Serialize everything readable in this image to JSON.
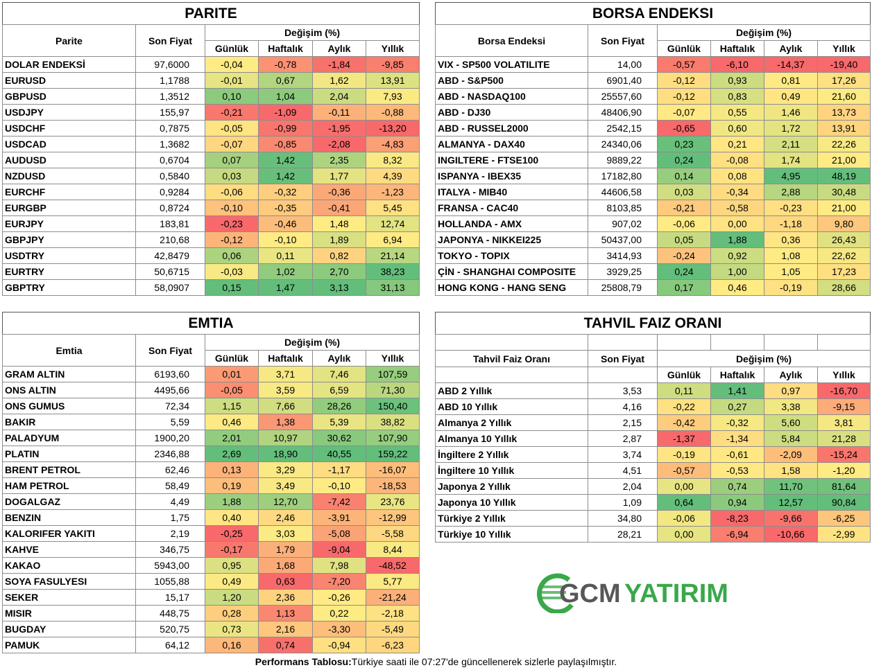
{
  "parite": {
    "title": "PARITE",
    "headers": {
      "name": "Parite",
      "price": "Son Fiyat",
      "change": "Değişim (%)",
      "periods": [
        "Günlük",
        "Haftalık",
        "Aylık",
        "Yıllık"
      ]
    },
    "rows": [
      [
        "DOLAR ENDEKSİ",
        "97,6000",
        "-0,04",
        "-0,78",
        "-1,84",
        "-9,85"
      ],
      [
        "EURUSD",
        "1,1788",
        "-0,01",
        "0,67",
        "1,62",
        "13,91"
      ],
      [
        "GBPUSD",
        "1,3512",
        "0,10",
        "1,04",
        "2,04",
        "7,93"
      ],
      [
        "USDJPY",
        "155,97",
        "-0,21",
        "-1,09",
        "-0,11",
        "-0,88"
      ],
      [
        "USDCHF",
        "0,7875",
        "-0,05",
        "-0,99",
        "-1,95",
        "-13,20"
      ],
      [
        "USDCAD",
        "1,3682",
        "-0,07",
        "-0,85",
        "-2,08",
        "-4,83"
      ],
      [
        "AUDUSD",
        "0,6704",
        "0,07",
        "1,42",
        "2,35",
        "8,32"
      ],
      [
        "NZDUSD",
        "0,5840",
        "0,03",
        "1,42",
        "1,77",
        "4,39"
      ],
      [
        "EURCHF",
        "0,9284",
        "-0,06",
        "-0,32",
        "-0,36",
        "-1,23"
      ],
      [
        "EURGBP",
        "0,8724",
        "-0,10",
        "-0,35",
        "-0,41",
        "5,45"
      ],
      [
        "EURJPY",
        "183,81",
        "-0,23",
        "-0,46",
        "1,48",
        "12,74"
      ],
      [
        "GBPJPY",
        "210,68",
        "-0,12",
        "-0,10",
        "1,89",
        "6,94"
      ],
      [
        "USDTRY",
        "42,8479",
        "0,06",
        "0,11",
        "0,82",
        "21,14"
      ],
      [
        "EURTRY",
        "50,6715",
        "-0,03",
        "1,02",
        "2,70",
        "38,23"
      ],
      [
        "GBPTRY",
        "58,0907",
        "0,15",
        "1,47",
        "3,13",
        "31,13"
      ]
    ]
  },
  "borsa": {
    "title": "BORSA ENDEKSI",
    "headers": {
      "name": "Borsa Endeksi",
      "price": "Son Fiyat",
      "change": "Değişim (%)",
      "periods": [
        "Günlük",
        "Haftalık",
        "Aylık",
        "Yıllık"
      ]
    },
    "rows": [
      [
        "VIX  - SP500 VOLATILITE",
        "14,00",
        "-0,57",
        "-6,10",
        "-14,37",
        "-19,40"
      ],
      [
        "ABD - S&P500",
        "6901,40",
        "-0,12",
        "0,93",
        "0,81",
        "17,26"
      ],
      [
        "ABD - NASDAQ100",
        "25557,60",
        "-0,12",
        "0,83",
        "0,49",
        "21,60"
      ],
      [
        "ABD - DJ30",
        "48406,90",
        "-0,07",
        "0,55",
        "1,46",
        "13,73"
      ],
      [
        "ABD - RUSSEL2000",
        "2542,15",
        "-0,65",
        "0,60",
        "1,72",
        "13,91"
      ],
      [
        "ALMANYA - DAX40",
        "24340,06",
        "0,23",
        "0,21",
        "2,11",
        "22,26"
      ],
      [
        "INGILTERE - FTSE100",
        "9889,22",
        "0,24",
        "-0,08",
        "1,74",
        "21,00"
      ],
      [
        "ISPANYA - IBEX35",
        "17182,80",
        "0,14",
        "0,08",
        "4,95",
        "48,19"
      ],
      [
        "ITALYA - MIB40",
        "44606,58",
        "0,03",
        "-0,34",
        "2,88",
        "30,48"
      ],
      [
        "FRANSA - CAC40",
        "8103,85",
        "-0,21",
        "-0,58",
        "-0,23",
        "21,00"
      ],
      [
        "HOLLANDA - AMX",
        "907,02",
        "-0,06",
        "0,00",
        "-1,18",
        "9,80"
      ],
      [
        "JAPONYA - NIKKEI225",
        "50437,00",
        "0,05",
        "1,88",
        "0,36",
        "26,43"
      ],
      [
        "TOKYO - TOPIX",
        "3414,93",
        "-0,24",
        "0,92",
        "1,08",
        "22,62"
      ],
      [
        "ÇİN - SHANGHAI COMPOSITE",
        "3929,25",
        "0,24",
        "1,00",
        "1,05",
        "17,23"
      ],
      [
        "HONG KONG - HANG SENG",
        "25808,79",
        "0,17",
        "0,46",
        "-0,19",
        "28,66"
      ]
    ]
  },
  "emtia": {
    "title": "EMTIA",
    "headers": {
      "name": "Emtia",
      "price": "Son Fiyat",
      "change": "Değişim (%)",
      "periods": [
        "Günlük",
        "Haftalık",
        "Aylık",
        "Yıllık"
      ]
    },
    "rows": [
      [
        "GRAM ALTIN",
        "6193,60",
        "0,01",
        "3,71",
        "7,46",
        "107,59"
      ],
      [
        "ONS ALTIN",
        "4495,66",
        "-0,05",
        "3,59",
        "6,59",
        "71,30"
      ],
      [
        "ONS GUMUS",
        "72,34",
        "1,15",
        "7,66",
        "28,26",
        "150,40"
      ],
      [
        "BAKIR",
        "5,59",
        "0,46",
        "1,38",
        "5,39",
        "38,82"
      ],
      [
        "PALADYUM",
        "1900,20",
        "2,01",
        "10,97",
        "30,62",
        "107,90"
      ],
      [
        "PLATIN",
        "2346,88",
        "2,69",
        "18,90",
        "40,55",
        "159,22"
      ],
      [
        "BRENT PETROL",
        "62,46",
        "0,13",
        "3,29",
        "-1,17",
        "-16,07"
      ],
      [
        "HAM PETROL",
        "58,49",
        "0,19",
        "3,49",
        "-0,10",
        "-18,53"
      ],
      [
        "DOGALGAZ",
        "4,49",
        "1,88",
        "12,70",
        "-7,42",
        "23,76"
      ],
      [
        "BENZIN",
        "1,75",
        "0,40",
        "2,46",
        "-3,91",
        "-12,99"
      ],
      [
        "KALORIFER YAKITI",
        "2,19",
        "-0,25",
        "3,03",
        "-5,08",
        "-5,58"
      ],
      [
        "KAHVE",
        "346,75",
        "-0,17",
        "1,79",
        "-9,04",
        "8,44"
      ],
      [
        "KAKAO",
        "5943,00",
        "0,95",
        "1,68",
        "7,98",
        "-48,52"
      ],
      [
        "SOYA FASULYESI",
        "1055,88",
        "0,49",
        "0,63",
        "-7,20",
        "5,77"
      ],
      [
        "SEKER",
        "15,17",
        "1,20",
        "2,36",
        "-0,26",
        "-21,24"
      ],
      [
        "MISIR",
        "448,75",
        "0,28",
        "1,13",
        "0,22",
        "-2,18"
      ],
      [
        "BUGDAY",
        "520,75",
        "0,73",
        "2,16",
        "-3,30",
        "-5,49"
      ],
      [
        "PAMUK",
        "64,12",
        "0,16",
        "0,74",
        "-0,94",
        "-6,23"
      ]
    ]
  },
  "tahvil": {
    "title": "TAHVIL FAIZ ORANI",
    "headers": {
      "name": "Tahvil Faiz Oranı",
      "price": "Son Fiyat",
      "change": "Değişim (%)",
      "periods": [
        "Günlük",
        "Haftalık",
        "Aylık",
        "Yıllık"
      ]
    },
    "rows": [
      [
        "ABD 2 Yıllık",
        "3,53",
        "0,11",
        "1,41",
        "0,97",
        "-16,70"
      ],
      [
        "ABD 10 Yıllık",
        "4,16",
        "-0,22",
        "0,27",
        "3,38",
        "-9,15"
      ],
      [
        "Almanya 2 Yıllık",
        "2,15",
        "-0,42",
        "-0,32",
        "5,60",
        "3,81"
      ],
      [
        "Almanya 10 Yıllık",
        "2,87",
        "-1,37",
        "-1,34",
        "5,84",
        "21,28"
      ],
      [
        "İngiltere 2 Yıllık",
        "3,74",
        "-0,19",
        "-0,61",
        "-2,09",
        "-15,24"
      ],
      [
        "İngiltere 10 Yıllık",
        "4,51",
        "-0,57",
        "-0,53",
        "1,58",
        "-1,20"
      ],
      [
        "Japonya 2 Yıllık",
        "2,04",
        "0,00",
        "0,74",
        "11,70",
        "81,64"
      ],
      [
        "Japonya 10 Yıllık",
        "1,09",
        "0,64",
        "0,94",
        "12,57",
        "90,84"
      ],
      [
        "Türkiye 2 Yıllık",
        "34,80",
        "-0,06",
        "-8,23",
        "-9,66",
        "-6,25"
      ],
      [
        "Türkiye 10 Yıllık",
        "28,21",
        "0,00",
        "-6,94",
        "-10,66",
        "-2,99"
      ]
    ]
  },
  "logo": {
    "gcm": "GCM",
    "yatirim": "YATIRIM"
  },
  "footer": {
    "label": "Performans Tablosu:",
    "text": " Türkiye saati ile 07:27'de güncellenerek sizlerle paylaşılmıştır."
  }
}
